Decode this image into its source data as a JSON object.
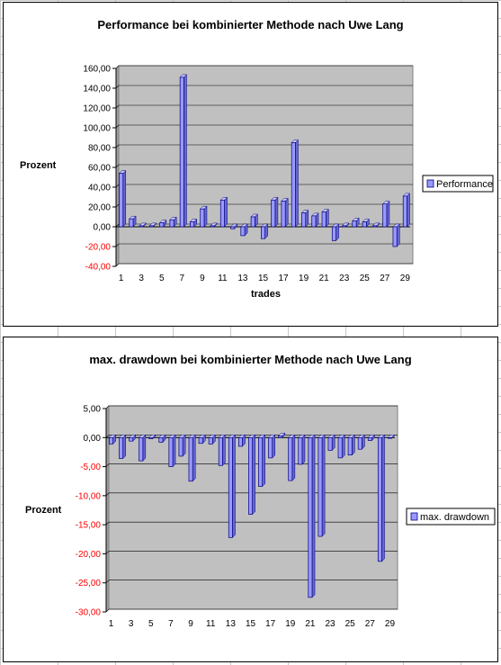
{
  "colors": {
    "bar_fill": "#9999ff",
    "bar_stroke": "#000080",
    "plot_bg": "#c0c0c0",
    "gridline": "#000000",
    "negative_tick": "#ff0000",
    "positive_tick": "#000000"
  },
  "chart_data": [
    {
      "type": "bar",
      "title": "Performance bei kombinierter Methode nach Uwe Lang",
      "xlabel": "trades",
      "ylabel": "Prozent",
      "ylim": [
        -40,
        160
      ],
      "ytick_step": 20,
      "y_tick_labels": [
        "160,00",
        "140,00",
        "120,00",
        "100,00",
        "80,00",
        "60,00",
        "40,00",
        "20,00",
        "0,00",
        "-20,00",
        "-40,00"
      ],
      "x_tick_labels": [
        "1",
        "3",
        "5",
        "7",
        "9",
        "11",
        "13",
        "15",
        "17",
        "19",
        "21",
        "23",
        "25",
        "27",
        "29"
      ],
      "grid": true,
      "legend_position": "right",
      "categories": [
        1,
        2,
        3,
        4,
        5,
        6,
        7,
        8,
        9,
        10,
        11,
        12,
        13,
        14,
        15,
        16,
        17,
        18,
        19,
        20,
        21,
        22,
        23,
        24,
        25,
        26,
        27,
        28,
        29
      ],
      "series": [
        {
          "name": "Performance",
          "values": [
            54,
            8,
            1,
            1,
            4,
            7,
            151,
            5,
            18,
            1,
            27,
            -2,
            -9,
            10,
            -12,
            27,
            26,
            85,
            14,
            11,
            15,
            -14,
            1,
            6,
            5,
            1,
            23,
            -20,
            31
          ]
        }
      ]
    },
    {
      "type": "bar",
      "title": "max. drawdown bei kombinierter Methode nach Uwe Lang",
      "xlabel": "",
      "ylabel": "Prozent",
      "ylim": [
        -30,
        5
      ],
      "ytick_step": 5,
      "y_tick_labels": [
        "5,00",
        "0,00",
        "-5,00",
        "-10,00",
        "-15,00",
        "-20,00",
        "-25,00",
        "-30,00"
      ],
      "x_tick_labels": [
        "1",
        "3",
        "5",
        "7",
        "9",
        "11",
        "13",
        "15",
        "17",
        "19",
        "21",
        "23",
        "25",
        "27",
        "29"
      ],
      "grid": true,
      "legend_position": "right",
      "categories": [
        1,
        2,
        3,
        4,
        5,
        6,
        7,
        8,
        9,
        10,
        11,
        12,
        13,
        14,
        15,
        16,
        17,
        18,
        19,
        20,
        21,
        22,
        23,
        24,
        25,
        26,
        27,
        28,
        29
      ],
      "series": [
        {
          "name": "max. drawdown",
          "values": [
            -1.1,
            -3.6,
            -0.6,
            -4.0,
            -0.2,
            -0.8,
            -5.0,
            -3.2,
            -7.5,
            -1.0,
            -1.1,
            -4.8,
            -17.2,
            -1.5,
            -13.2,
            -8.4,
            -3.5,
            0.3,
            -7.4,
            -4.6,
            -27.5,
            -17.0,
            -2.2,
            -3.5,
            -3.0,
            -2.0,
            -0.5,
            -21.3,
            0
          ]
        }
      ]
    }
  ]
}
